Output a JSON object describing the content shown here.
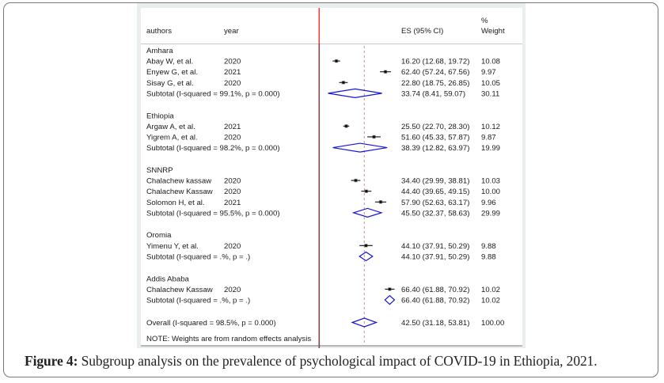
{
  "figure": {
    "caption_label": "Figure 4:",
    "caption_text": " Subgroup analysis on the prevalence of psychological impact of COVID-19 in Ethiopia, 2021."
  },
  "chart_data": {
    "type": "forest",
    "title": "",
    "columns": {
      "authors": "authors",
      "year": "year",
      "es": "ES (95% CI)",
      "weight_top": "%",
      "weight": "Weight"
    },
    "xlim": [
      0,
      75
    ],
    "null_line": 0,
    "overall_line": 42.5,
    "colors": {
      "zero_line_header": "#e8403f",
      "zero_line": "#7e4a4b",
      "overall_line": "#cf9a9f",
      "diamond": "#1515d8",
      "marker": "#111111"
    },
    "groups": [
      {
        "name": "Amhara",
        "studies": [
          {
            "author": "Abay W, et al.",
            "year": "2020",
            "es": 16.2,
            "lo": 12.68,
            "hi": 19.72,
            "es_text": "16.20 (12.68, 19.72)",
            "weight": "10.08"
          },
          {
            "author": "Enyew G, et al.",
            "year": "2021",
            "es": 62.4,
            "lo": 57.24,
            "hi": 67.56,
            "es_text": "62.40 (57.24, 67.56)",
            "weight": "9.97"
          },
          {
            "author": "Sisay G, et al.",
            "year": "2020",
            "es": 22.8,
            "lo": 18.75,
            "hi": 26.85,
            "es_text": "22.80 (18.75, 26.85)",
            "weight": "10.05"
          }
        ],
        "subtotal": {
          "label": "Subtotal  (I-squared = 99.1%, p = 0.000)",
          "es": 33.74,
          "lo": 8.41,
          "hi": 59.07,
          "es_text": "33.74 (8.41, 59.07)",
          "weight": "30.11"
        }
      },
      {
        "name": "Ethiopia",
        "studies": [
          {
            "author": "Argaw A, et al.",
            "year": "2021",
            "es": 25.5,
            "lo": 22.7,
            "hi": 28.3,
            "es_text": "25.50 (22.70, 28.30)",
            "weight": "10.12"
          },
          {
            "author": "Yigrem A, et al.",
            "year": "2020",
            "es": 51.6,
            "lo": 45.33,
            "hi": 57.87,
            "es_text": "51.60 (45.33, 57.87)",
            "weight": "9.87"
          }
        ],
        "subtotal": {
          "label": "Subtotal  (I-squared = 98.2%, p = 0.000)",
          "es": 38.39,
          "lo": 12.82,
          "hi": 63.97,
          "es_text": "38.39 (12.82, 63.97)",
          "weight": "19.99"
        }
      },
      {
        "name": "SNNRP",
        "studies": [
          {
            "author": "Chalachew kassaw",
            "year": "2020",
            "es": 34.4,
            "lo": 29.99,
            "hi": 38.81,
            "es_text": "34.40 (29.99, 38.81)",
            "weight": "10.03"
          },
          {
            "author": "Chalachew Kassaw",
            "year": "2020",
            "es": 44.4,
            "lo": 39.65,
            "hi": 49.15,
            "es_text": "44.40 (39.65, 49.15)",
            "weight": "10.00"
          },
          {
            "author": "Solomon H, et al.",
            "year": "2021",
            "es": 57.9,
            "lo": 52.63,
            "hi": 63.17,
            "es_text": "57.90 (52.63, 63.17)",
            "weight": "9.96"
          }
        ],
        "subtotal": {
          "label": "Subtotal  (I-squared = 95.5%, p = 0.000)",
          "es": 45.5,
          "lo": 32.37,
          "hi": 58.63,
          "es_text": "45.50 (32.37, 58.63)",
          "weight": "29.99"
        }
      },
      {
        "name": "Oromia",
        "studies": [
          {
            "author": "Yimenu Y, et al.",
            "year": "2020",
            "es": 44.1,
            "lo": 37.91,
            "hi": 50.29,
            "es_text": "44.10 (37.91, 50.29)",
            "weight": "9.88"
          }
        ],
        "subtotal": {
          "label": "Subtotal  (I-squared = .%, p = .)",
          "es": 44.1,
          "lo": 37.91,
          "hi": 50.29,
          "es_text": "44.10 (37.91, 50.29)",
          "weight": "9.88"
        }
      },
      {
        "name": "Addis Ababa",
        "studies": [
          {
            "author": "Chalachew Kassaw",
            "year": "2020",
            "es": 66.4,
            "lo": 61.88,
            "hi": 70.92,
            "es_text": "66.40 (61.88, 70.92)",
            "weight": "10.02"
          }
        ],
        "subtotal": {
          "label": "Subtotal  (I-squared = .%, p = .)",
          "es": 66.4,
          "lo": 61.88,
          "hi": 70.92,
          "es_text": "66.40 (61.88, 70.92)",
          "weight": "10.02"
        }
      }
    ],
    "overall": {
      "label": "Overall  (I-squared = 98.5%, p = 0.000)",
      "es": 42.5,
      "lo": 31.18,
      "hi": 53.81,
      "es_text": "42.50 (31.18, 53.81)",
      "weight": "100.00"
    },
    "note": "NOTE: Weights are from random effects analysis"
  }
}
